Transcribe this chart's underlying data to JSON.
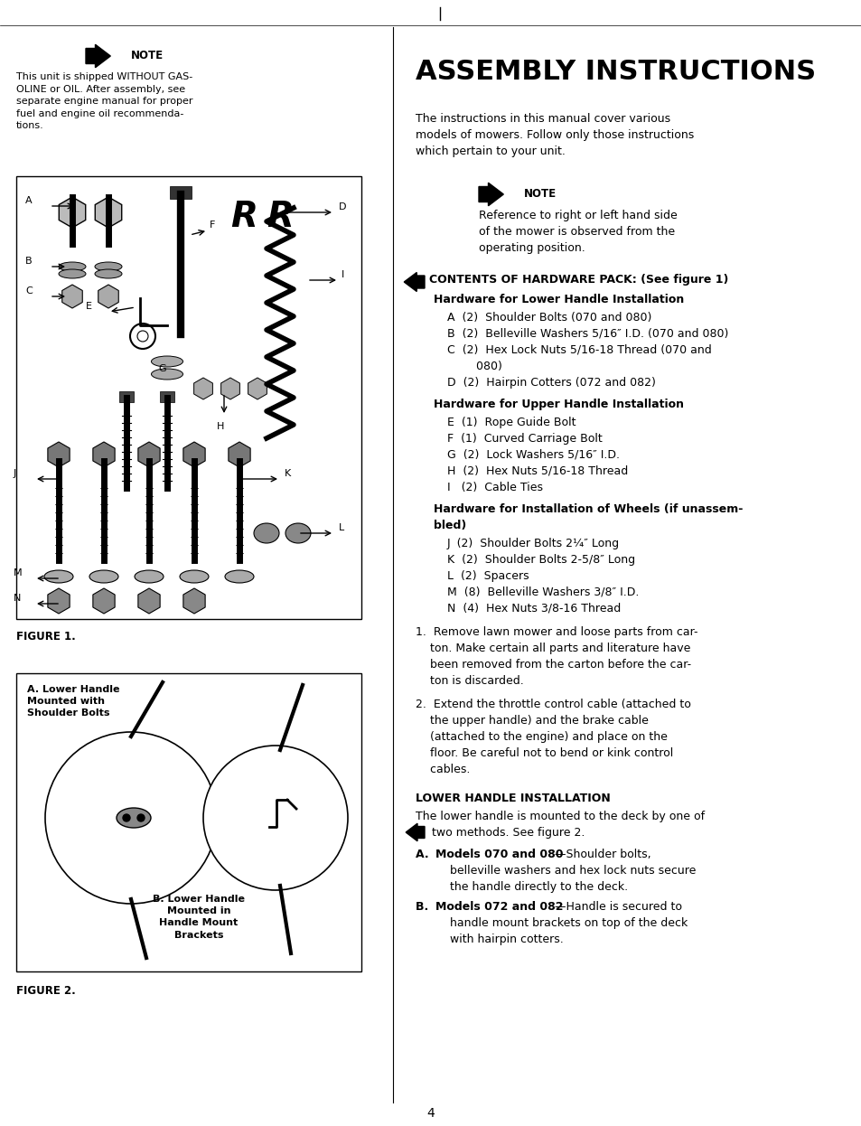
{
  "page_number": "4",
  "background_color": "#ffffff",
  "text_color": "#000000",
  "note_left_body": "This unit is shipped WITHOUT GAS-\nOLINE or OIL. After assembly, see\nseparate engine manual for proper\nfuel and engine oil recommenda-\ntions.",
  "figure1_label": "FIGURE 1.",
  "figure2_label": "FIGURE 2.",
  "assembly_title": "ASSEMBLY INSTRUCTIONS",
  "assembly_intro": "The instructions in this manual cover various\nmodels of mowers. Follow only those instructions\nwhich pertain to your unit.",
  "note_right_body": "Reference to right or left hand side\nof the mower is observed from the\noperating position.",
  "contents_header": "CONTENTS OF HARDWARE PACK: (See figure 1)",
  "lower_handle_header": "Hardware for Lower Handle Installation",
  "lower_handle_items": [
    "A  (2)  Shoulder Bolts (070 and 080)",
    "B  (2)  Belleville Washers 5/16″ I.D. (070 and 080)",
    "C  (2)  Hex Lock Nuts 5/16-18 Thread (070 and",
    "        080)",
    "D  (2)  Hairpin Cotters (072 and 082)"
  ],
  "upper_handle_header": "Hardware for Upper Handle Installation",
  "upper_handle_items": [
    "E  (1)  Rope Guide Bolt",
    "F  (1)  Curved Carriage Bolt",
    "G  (2)  Lock Washers 5/16″ I.D.",
    "H  (2)  Hex Nuts 5/16-18 Thread",
    "I   (2)  Cable Ties"
  ],
  "wheels_header_line1": "Hardware for Installation of Wheels (if unassem-",
  "wheels_header_line2": "bled)",
  "wheels_items": [
    "J  (2)  Shoulder Bolts 2¼″ Long",
    "K  (2)  Shoulder Bolts 2-5/8″ Long",
    "L  (2)  Spacers",
    "M  (8)  Belleville Washers 3/8″ I.D.",
    "N  (4)  Hex Nuts 3/8-16 Thread"
  ],
  "step1_line1": "1.  Remove lawn mower and loose parts from car-",
  "step1_line2": "    ton. Make certain all parts and literature have",
  "step1_line3": "    been removed from the carton before the car-",
  "step1_line4": "    ton is discarded.",
  "step2_line1": "2.  Extend the throttle control cable (attached to",
  "step2_line2": "    the upper handle) and the brake cable",
  "step2_line3": "    (attached to the engine) and place on the",
  "step2_line4": "    floor. Be careful not to bend or kink control",
  "step2_line5": "    cables.",
  "lower_install_header": "LOWER HANDLE INSTALLATION",
  "lower_install_intro1": "The lower handle is mounted to the deck by one of",
  "lower_install_intro2": "two methods. See figure 2.",
  "model_a_bold": "Models 070 and 080",
  "model_a_rest1": "—Shoulder bolts,",
  "model_a_rest2": "    belleville washers and hex lock nuts secure",
  "model_a_rest3": "    the handle directly to the deck.",
  "model_b_bold": "Models 072 and 082",
  "model_b_rest1": "—Handle is secured to",
  "model_b_rest2": "    handle mount brackets on top of the deck",
  "model_b_rest3": "    with hairpin cotters.",
  "fig2_label_a": "A. Lower Handle\nMounted with\nShoulder Bolts",
  "fig2_label_b": "B. Lower Handle\nMounted in\nHandle Mount\nBrackets"
}
